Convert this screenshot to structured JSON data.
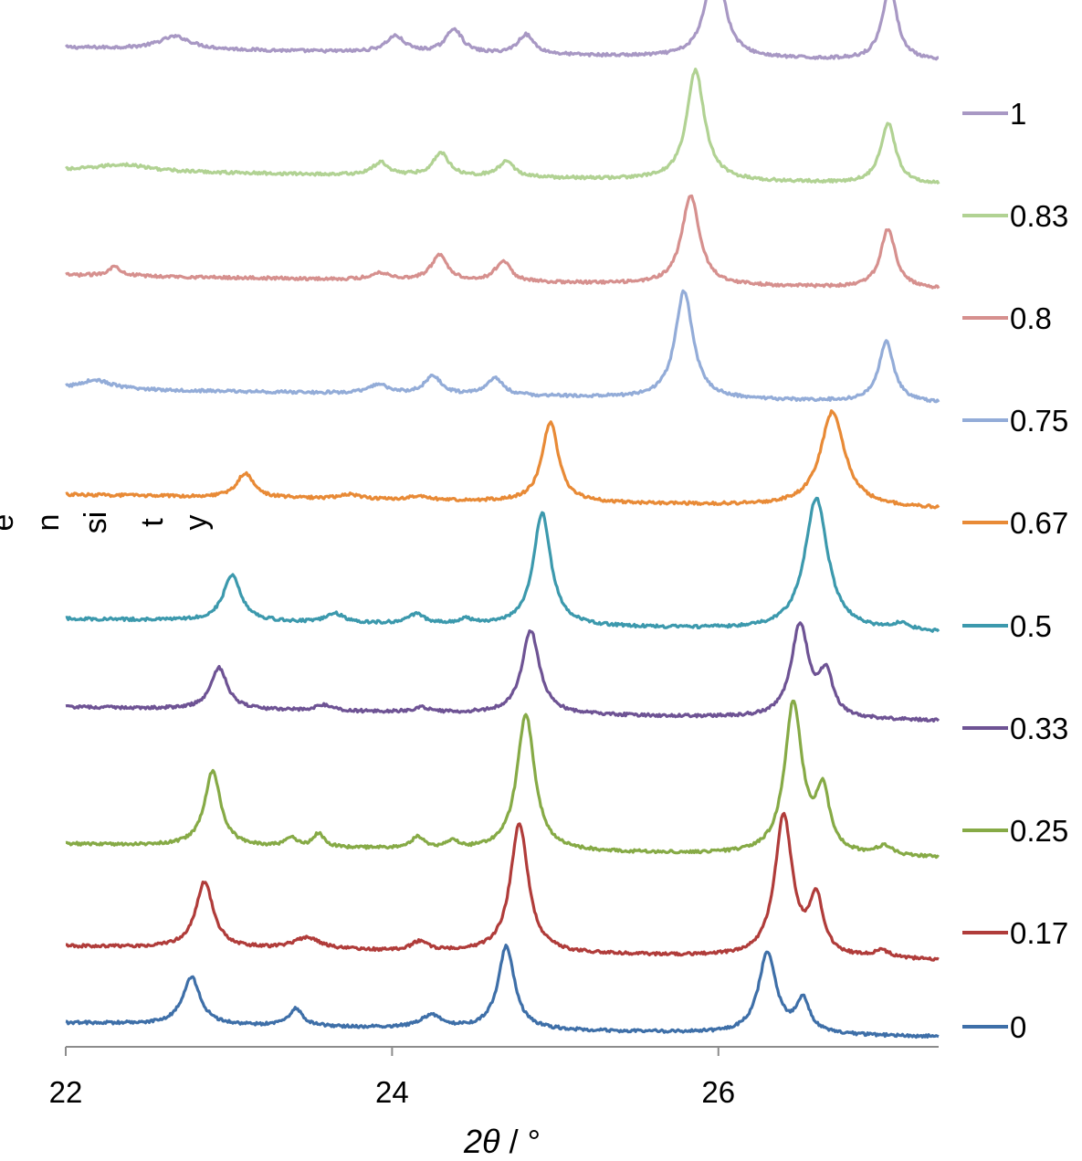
{
  "chart_data": {
    "type": "line",
    "title": "",
    "xlabel": {
      "symbol": "2θ",
      "unit": "°"
    },
    "ylabel_fragments": [
      "e",
      "n",
      "si",
      "t",
      "y"
    ],
    "xlim": [
      22,
      27.35
    ],
    "x_ticks": [
      22,
      24,
      26
    ],
    "x_tick_labels": [
      "22",
      "24",
      "26"
    ],
    "grid": false,
    "legend_position": "right",
    "series": [
      {
        "name": "1",
        "color": "#a898c4",
        "baseline": 0.953,
        "peaks": [
          {
            "x": 22.67,
            "h": 0.011,
            "w": 0.12
          },
          {
            "x": 24.02,
            "h": 0.014,
            "w": 0.07
          },
          {
            "x": 24.38,
            "h": 0.021,
            "w": 0.06
          },
          {
            "x": 24.82,
            "h": 0.017,
            "w": 0.06
          },
          {
            "x": 25.98,
            "h": 0.088,
            "w": 0.065
          },
          {
            "x": 27.05,
            "h": 0.063,
            "w": 0.055
          }
        ]
      },
      {
        "name": "0.83",
        "color": "#b1d293",
        "baseline": 0.847,
        "peaks": [
          {
            "x": 22.35,
            "h": 0.006,
            "w": 0.2
          },
          {
            "x": 23.93,
            "h": 0.011,
            "w": 0.06
          },
          {
            "x": 24.3,
            "h": 0.02,
            "w": 0.06
          },
          {
            "x": 24.7,
            "h": 0.013,
            "w": 0.06
          },
          {
            "x": 25.86,
            "h": 0.095,
            "w": 0.065
          },
          {
            "x": 27.04,
            "h": 0.052,
            "w": 0.055
          }
        ]
      },
      {
        "name": "0.8",
        "color": "#d6908e",
        "baseline": 0.757,
        "peaks": [
          {
            "x": 22.3,
            "h": 0.008,
            "w": 0.05
          },
          {
            "x": 23.93,
            "h": 0.006,
            "w": 0.07
          },
          {
            "x": 24.29,
            "h": 0.022,
            "w": 0.06
          },
          {
            "x": 24.68,
            "h": 0.018,
            "w": 0.055
          },
          {
            "x": 25.83,
            "h": 0.077,
            "w": 0.065
          },
          {
            "x": 27.04,
            "h": 0.051,
            "w": 0.055
          }
        ]
      },
      {
        "name": "0.75",
        "color": "#93acd8",
        "baseline": 0.659,
        "peaks": [
          {
            "x": 22.18,
            "h": 0.008,
            "w": 0.12
          },
          {
            "x": 23.92,
            "h": 0.008,
            "w": 0.07
          },
          {
            "x": 24.25,
            "h": 0.016,
            "w": 0.06
          },
          {
            "x": 24.63,
            "h": 0.015,
            "w": 0.06
          },
          {
            "x": 25.79,
            "h": 0.093,
            "w": 0.065
          },
          {
            "x": 27.03,
            "h": 0.052,
            "w": 0.055
          }
        ]
      },
      {
        "name": "0.67",
        "color": "#e88a36",
        "baseline": 0.568,
        "peaks": [
          {
            "x": 23.1,
            "h": 0.021,
            "w": 0.06
          },
          {
            "x": 23.74,
            "h": 0.004,
            "w": 0.07
          },
          {
            "x": 24.16,
            "h": 0.003,
            "w": 0.06
          },
          {
            "x": 24.97,
            "h": 0.069,
            "w": 0.06
          },
          {
            "x": 26.7,
            "h": 0.082,
            "w": 0.09
          }
        ]
      },
      {
        "name": "0.5",
        "color": "#3c99ad",
        "baseline": 0.461,
        "peaks": [
          {
            "x": 23.02,
            "h": 0.04,
            "w": 0.065
          },
          {
            "x": 23.65,
            "h": 0.008,
            "w": 0.06
          },
          {
            "x": 24.15,
            "h": 0.008,
            "w": 0.06
          },
          {
            "x": 24.45,
            "h": 0.004,
            "w": 0.05
          },
          {
            "x": 24.92,
            "h": 0.097,
            "w": 0.065
          },
          {
            "x": 26.6,
            "h": 0.114,
            "w": 0.085
          },
          {
            "x": 27.12,
            "h": 0.006,
            "w": 0.06
          }
        ]
      },
      {
        "name": "0.33",
        "color": "#6e5394",
        "baseline": 0.385,
        "peaks": [
          {
            "x": 22.94,
            "h": 0.036,
            "w": 0.06
          },
          {
            "x": 23.58,
            "h": 0.005,
            "w": 0.06
          },
          {
            "x": 24.18,
            "h": 0.004,
            "w": 0.06
          },
          {
            "x": 24.85,
            "h": 0.072,
            "w": 0.065
          },
          {
            "x": 26.5,
            "h": 0.08,
            "w": 0.065
          },
          {
            "x": 26.66,
            "h": 0.036,
            "w": 0.05
          }
        ]
      },
      {
        "name": "0.25",
        "color": "#86aa46",
        "baseline": 0.267,
        "peaks": [
          {
            "x": 22.9,
            "h": 0.064,
            "w": 0.06
          },
          {
            "x": 23.38,
            "h": 0.008,
            "w": 0.04
          },
          {
            "x": 23.55,
            "h": 0.012,
            "w": 0.04
          },
          {
            "x": 24.16,
            "h": 0.01,
            "w": 0.05
          },
          {
            "x": 24.37,
            "h": 0.007,
            "w": 0.04
          },
          {
            "x": 24.82,
            "h": 0.118,
            "w": 0.065
          },
          {
            "x": 26.46,
            "h": 0.13,
            "w": 0.065
          },
          {
            "x": 26.64,
            "h": 0.051,
            "w": 0.05
          },
          {
            "x": 27.02,
            "h": 0.008,
            "w": 0.06
          }
        ]
      },
      {
        "name": "0.17",
        "color": "#b03c3a",
        "baseline": 0.179,
        "peaks": [
          {
            "x": 22.85,
            "h": 0.057,
            "w": 0.065
          },
          {
            "x": 23.48,
            "h": 0.01,
            "w": 0.1
          },
          {
            "x": 24.17,
            "h": 0.008,
            "w": 0.06
          },
          {
            "x": 24.78,
            "h": 0.112,
            "w": 0.065
          },
          {
            "x": 26.4,
            "h": 0.121,
            "w": 0.065
          },
          {
            "x": 26.6,
            "h": 0.049,
            "w": 0.05
          },
          {
            "x": 27.0,
            "h": 0.006,
            "w": 0.06
          }
        ]
      },
      {
        "name": "0",
        "color": "#3e6fa8",
        "baseline": 0.113,
        "peaks": [
          {
            "x": 22.77,
            "h": 0.041,
            "w": 0.065
          },
          {
            "x": 23.41,
            "h": 0.015,
            "w": 0.05
          },
          {
            "x": 24.24,
            "h": 0.011,
            "w": 0.08
          },
          {
            "x": 24.7,
            "h": 0.072,
            "w": 0.06
          },
          {
            "x": 26.3,
            "h": 0.069,
            "w": 0.065
          },
          {
            "x": 26.52,
            "h": 0.028,
            "w": 0.05
          }
        ]
      }
    ]
  }
}
